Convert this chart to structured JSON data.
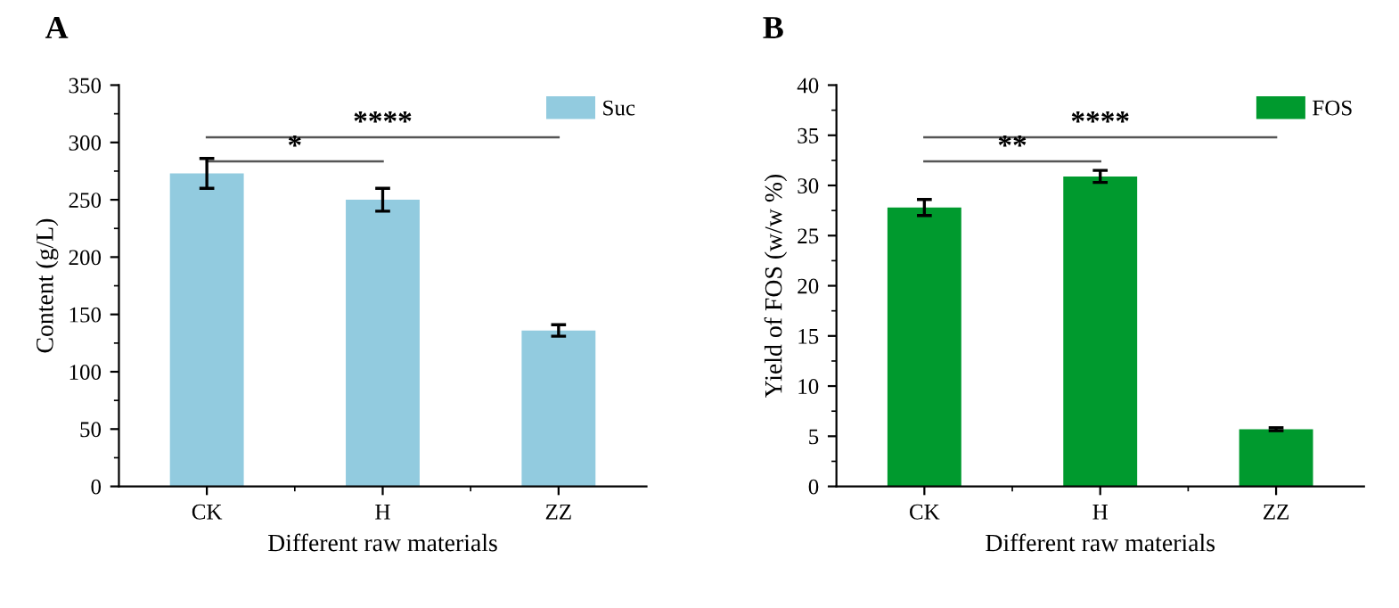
{
  "chart_data": [
    {
      "type": "bar",
      "title": "A",
      "xlabel": "Different raw materials",
      "ylabel": "Content (g/L)",
      "categories": [
        "CK",
        "H",
        "ZZ"
      ],
      "series": [
        {
          "name": "Suc",
          "color": "#92cbdf",
          "values": [
            273,
            250,
            136
          ],
          "errors": [
            13,
            10,
            5
          ]
        }
      ],
      "ylim": [
        0,
        350
      ],
      "yticks": [
        0,
        50,
        100,
        150,
        200,
        250,
        300,
        350
      ],
      "legend": "top right",
      "annotations": [
        "*",
        "****"
      ]
    },
    {
      "type": "bar",
      "title": "B",
      "xlabel": "Different raw materials",
      "ylabel": "Yield of FOS (w/w %)",
      "categories": [
        "CK",
        "H",
        "ZZ"
      ],
      "series": [
        {
          "name": "FOS",
          "color": "#009a2e",
          "values": [
            27.8,
            30.9,
            5.7
          ],
          "errors": [
            0.8,
            0.6,
            0.15
          ]
        }
      ],
      "ylim": [
        0,
        40
      ],
      "yticks": [
        0,
        5,
        10,
        15,
        20,
        25,
        30,
        35,
        40
      ],
      "legend": "top right",
      "annotations": [
        "**",
        "****"
      ]
    }
  ]
}
